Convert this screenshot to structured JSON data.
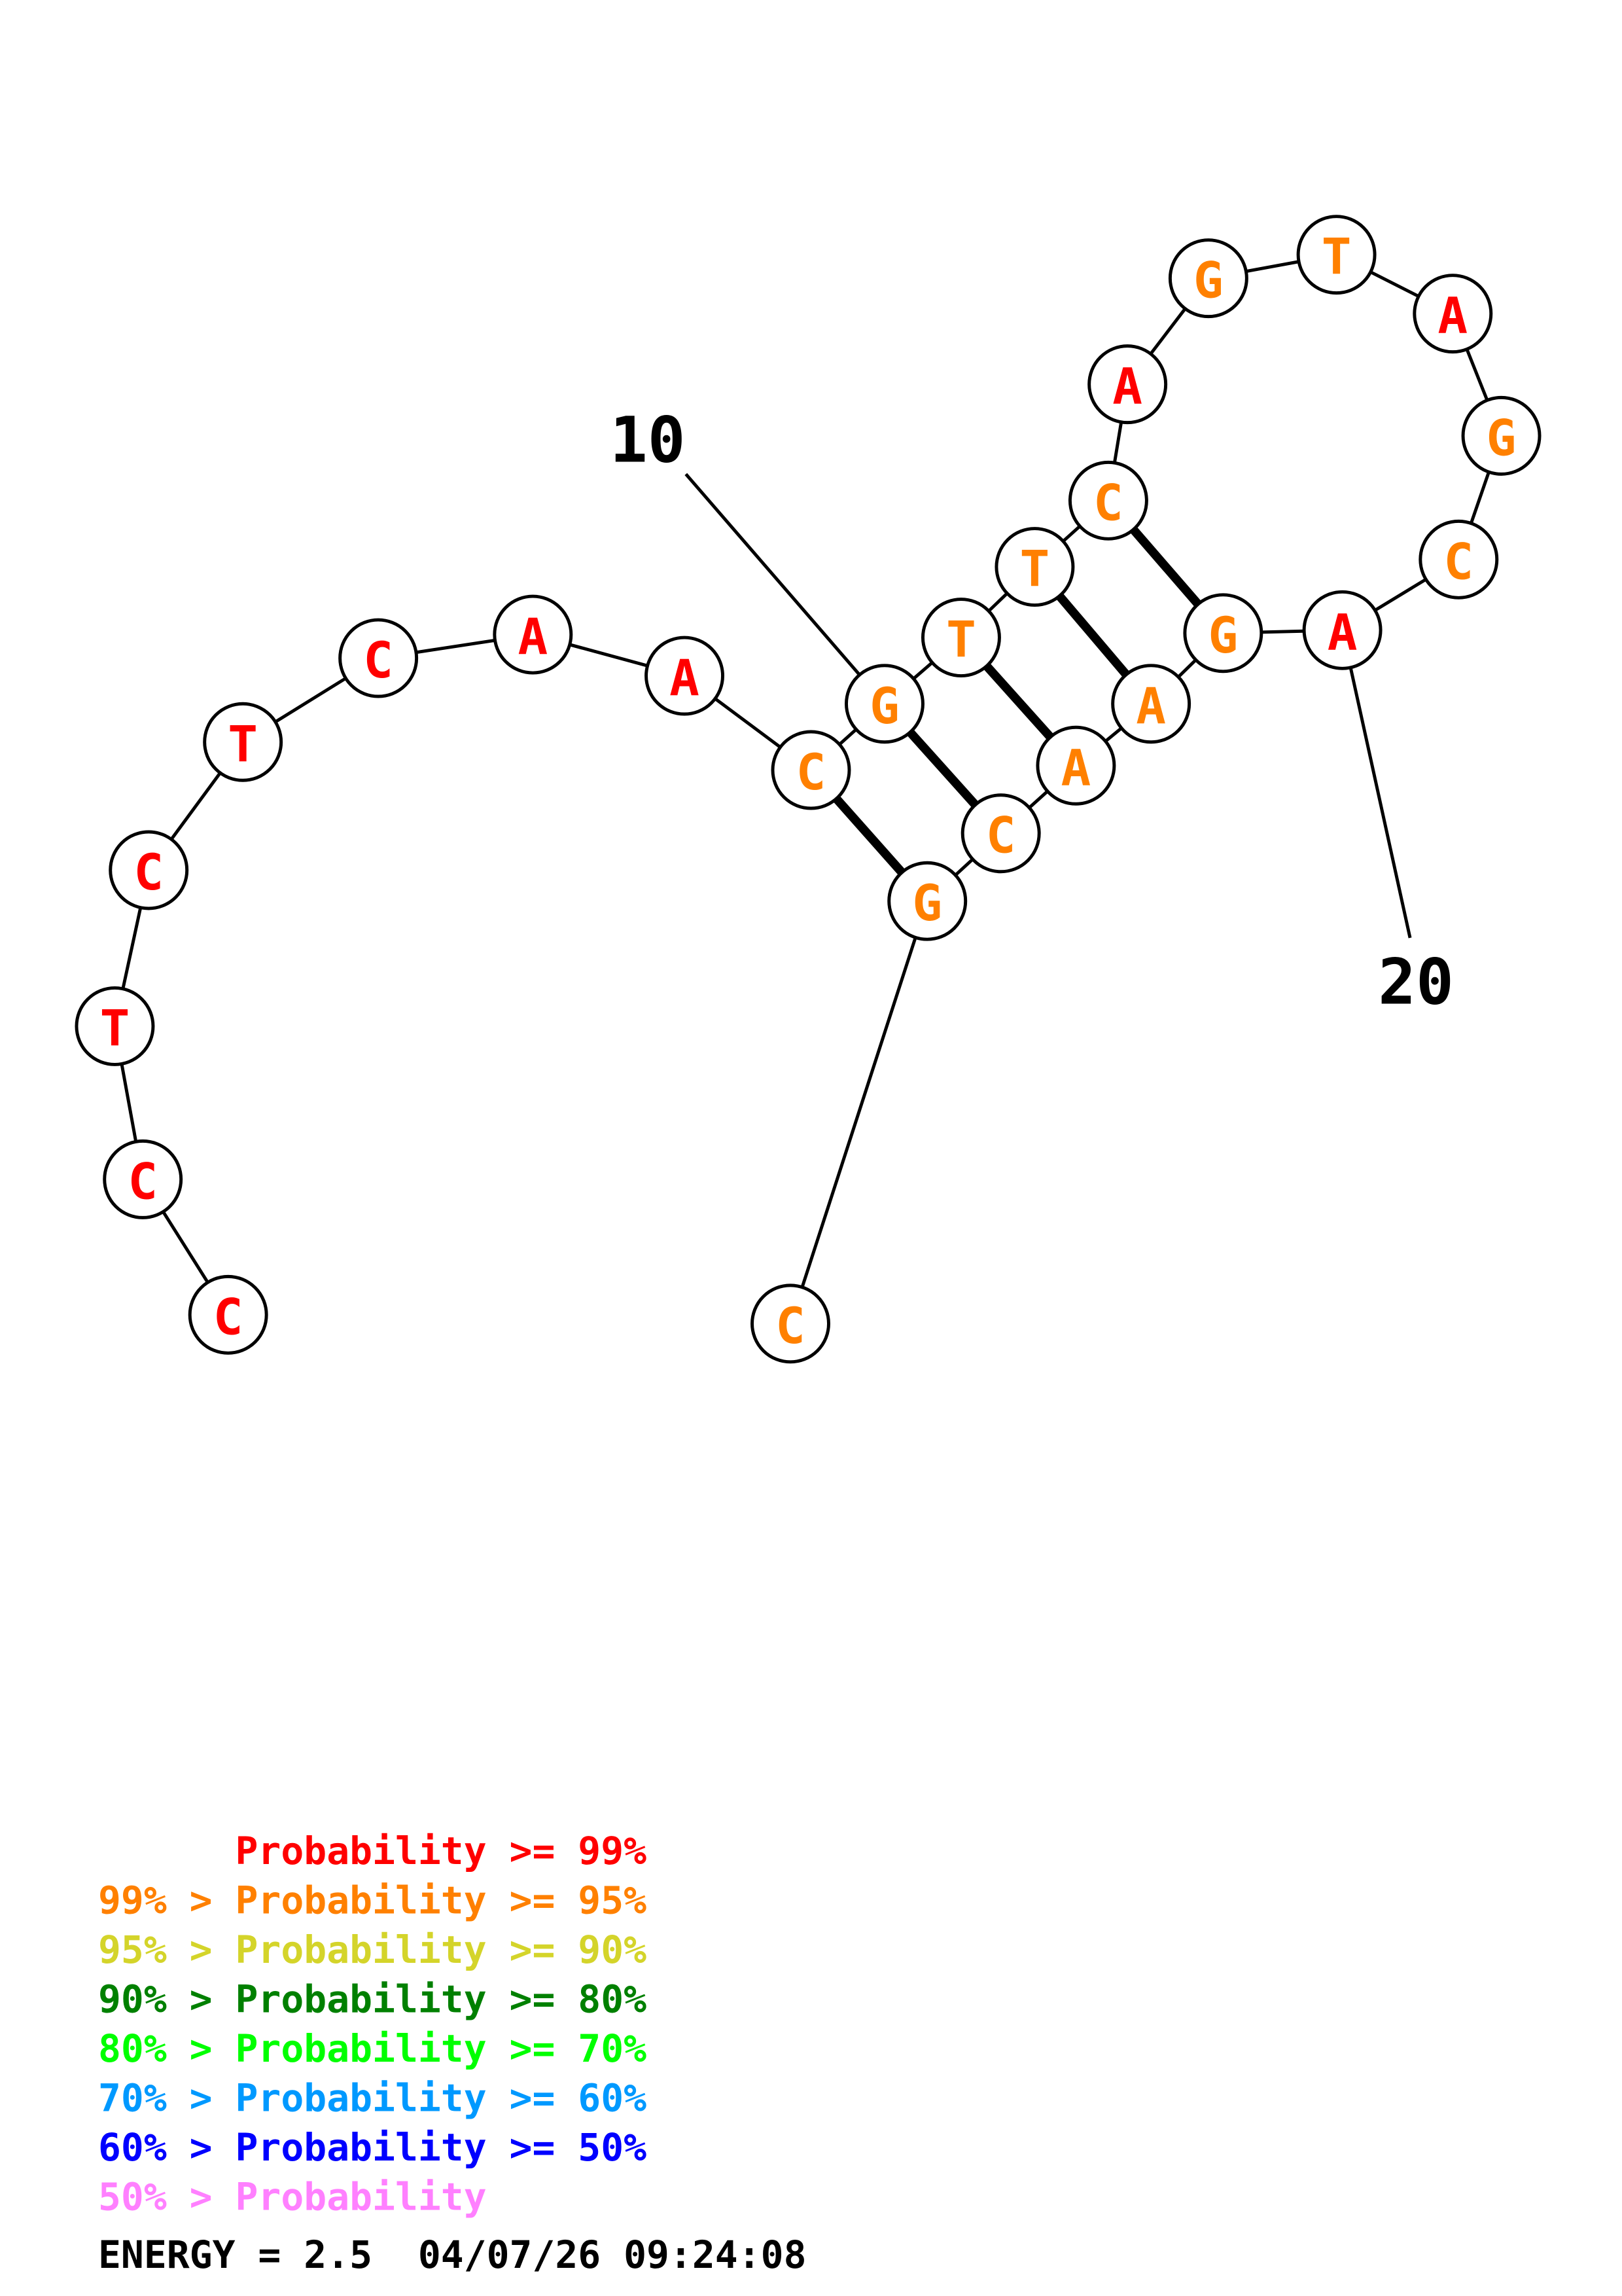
{
  "structure": {
    "nucleotides": [
      {
        "base": "C",
        "prob": "red"
      },
      {
        "base": "C",
        "prob": "red"
      },
      {
        "base": "T",
        "prob": "red"
      },
      {
        "base": "C",
        "prob": "red"
      },
      {
        "base": "T",
        "prob": "red"
      },
      {
        "base": "C",
        "prob": "red"
      },
      {
        "base": "A",
        "prob": "red"
      },
      {
        "base": "A",
        "prob": "red"
      },
      {
        "base": "C",
        "prob": "orange"
      },
      {
        "base": "G",
        "prob": "orange"
      },
      {
        "base": "T",
        "prob": "orange"
      },
      {
        "base": "T",
        "prob": "orange"
      },
      {
        "base": "C",
        "prob": "orange"
      },
      {
        "base": "A",
        "prob": "red"
      },
      {
        "base": "G",
        "prob": "orange"
      },
      {
        "base": "T",
        "prob": "orange"
      },
      {
        "base": "A",
        "prob": "red"
      },
      {
        "base": "G",
        "prob": "orange"
      },
      {
        "base": "C",
        "prob": "orange"
      },
      {
        "base": "A",
        "prob": "red"
      },
      {
        "base": "G",
        "prob": "orange"
      },
      {
        "base": "A",
        "prob": "orange"
      },
      {
        "base": "A",
        "prob": "orange"
      },
      {
        "base": "C",
        "prob": "orange"
      },
      {
        "base": "G",
        "prob": "orange"
      },
      {
        "base": "C",
        "prob": "orange"
      }
    ],
    "pairs": [
      [
        9,
        25
      ],
      [
        10,
        24
      ],
      [
        11,
        23
      ],
      [
        12,
        22
      ],
      [
        13,
        21
      ]
    ],
    "position_labels": [
      {
        "text": "10",
        "index": 10
      },
      {
        "text": "20",
        "index": 20
      }
    ]
  },
  "colors": {
    "red": "#ff0000",
    "orange": "#ff8000",
    "yellow": "#d4d42a",
    "darkgreen": "#008000",
    "green": "#00ff00",
    "cyan": "#0099ff",
    "blue": "#0000ff",
    "pink": "#ff80ff"
  },
  "legend": [
    {
      "text": "      Probability >= 99%",
      "color": "#ff0000"
    },
    {
      "text": "99% > Probability >= 95%",
      "color": "#ff8000"
    },
    {
      "text": "95% > Probability >= 90%",
      "color": "#d4d42a"
    },
    {
      "text": "90% > Probability >= 80%",
      "color": "#008000"
    },
    {
      "text": "80% > Probability >= 70%",
      "color": "#00ff00"
    },
    {
      "text": "70% > Probability >= 60%",
      "color": "#0099ff"
    },
    {
      "text": "60% > Probability >= 50%",
      "color": "#0000ff"
    },
    {
      "text": "50% > Probability",
      "color": "#ff80ff"
    }
  ],
  "energy": "ENERGY = 2.5  04/07/26 09:24:08"
}
